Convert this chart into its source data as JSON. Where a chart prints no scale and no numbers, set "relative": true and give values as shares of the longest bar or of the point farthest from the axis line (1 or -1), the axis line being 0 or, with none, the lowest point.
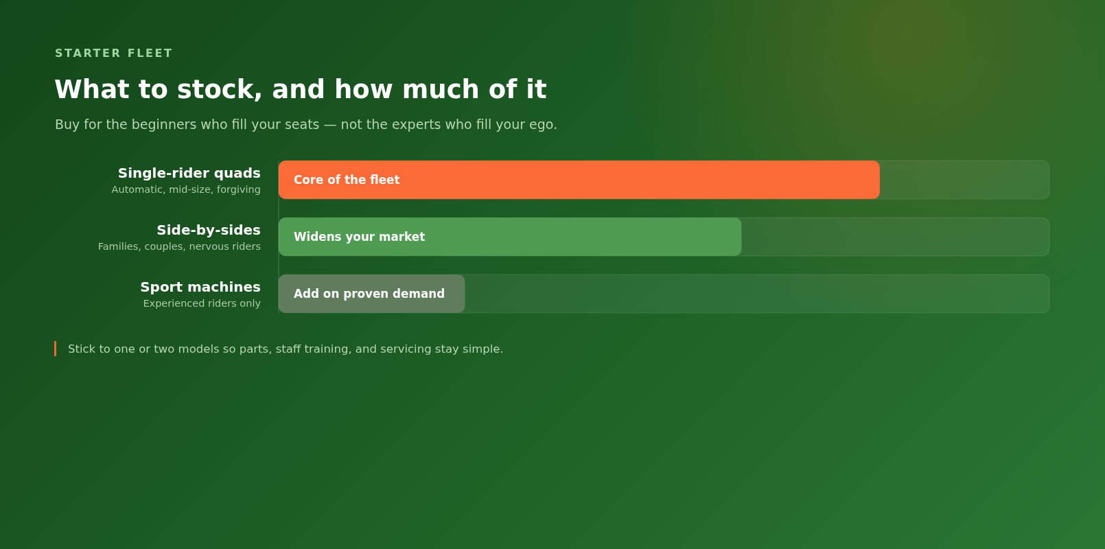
{
  "chart_data": {
    "type": "bar",
    "orientation": "horizontal",
    "relative": true,
    "title": "What to stock, and how much of it",
    "subtitle": "Buy for the beginners who fill your seats — not the experts who fill your ego.",
    "annotations": [
      "STARTER FLEET",
      "Core of the fleet",
      "Widens your market",
      "Add on proven demand",
      "Stick to one or two models so parts, staff training, and servicing stay simple."
    ],
    "categories": [
      "Single-rider quads\nAutomatic, mid-size, forgiving",
      "Side-by-sides\nFamilies, couples, nervous riders",
      "Sport machines\nExperienced riders only"
    ],
    "values": [
      1,
      0.77,
      0.31
    ],
    "colors": [
      "#fc6a38",
      "#4e9b52",
      "#5f7d5d"
    ]
  }
}
